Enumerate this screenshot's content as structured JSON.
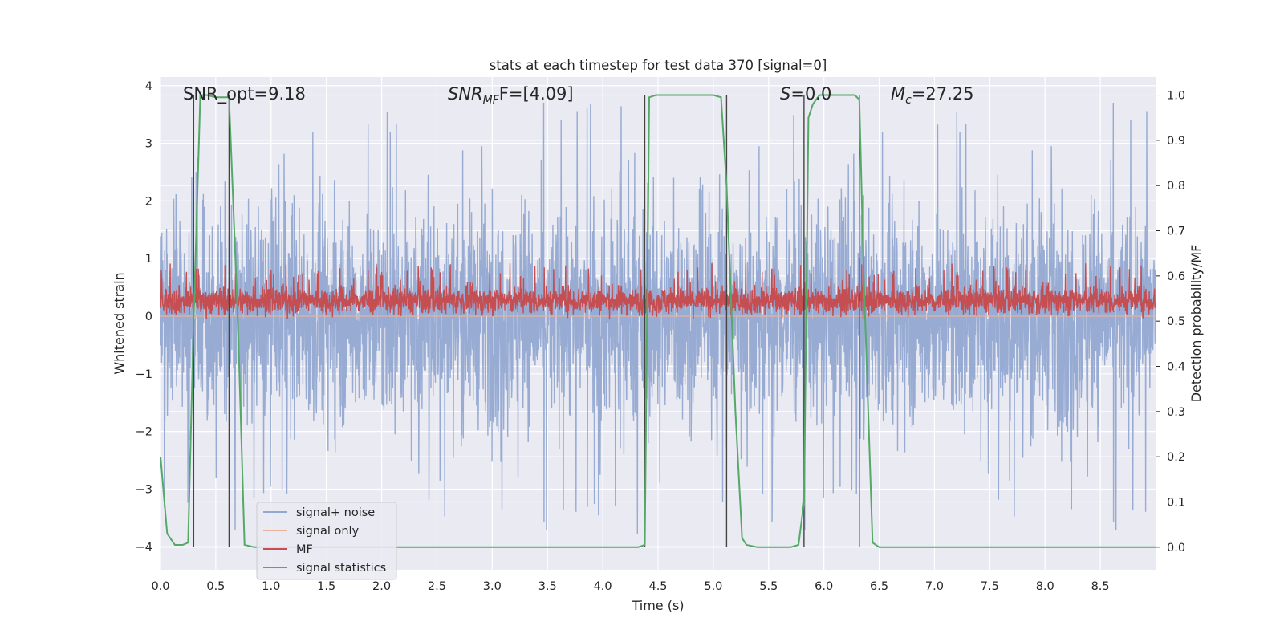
{
  "chart_data": {
    "type": "line",
    "title": "stats at each timestep for test data 370 [signal=0]",
    "xlabel": "Time (s)",
    "ylabel": "Whitened strain",
    "ylabel_right": "Detection probability/MF",
    "xlim": [
      0.0,
      9.0
    ],
    "ylim": [
      -4.4,
      4.15
    ],
    "ylim_right": [
      -0.05,
      1.04
    ],
    "x_ticks": [
      "0.0",
      "0.5",
      "1.0",
      "1.5",
      "2.0",
      "2.5",
      "3.0",
      "3.5",
      "4.0",
      "4.5",
      "5.0",
      "5.5",
      "6.0",
      "6.5",
      "7.0",
      "7.5",
      "8.0",
      "8.5"
    ],
    "y_ticks": [
      "4",
      "3",
      "2",
      "1",
      "0",
      "−1",
      "−2",
      "−3",
      "−4"
    ],
    "y_right_ticks": [
      "1.0",
      "0.9",
      "0.8",
      "0.7",
      "0.6",
      "0.5",
      "0.4",
      "0.3",
      "0.2",
      "0.1",
      "0.0"
    ],
    "annotations": {
      "snr_opt": "SNR_opt=9.18",
      "snr_mf_main": "SNR",
      "snr_mf_sub": "MF",
      "snr_mf_rest": "F=[4.09]",
      "s_main": "S",
      "s_rest": "=0.0",
      "mc_main": "M",
      "mc_sub": "c",
      "mc_rest": "=27.25"
    },
    "vertical_markers_x": [
      0.3,
      0.62,
      4.38,
      5.12,
      5.82,
      6.32
    ],
    "series": [
      {
        "name": "signal+ noise",
        "color": "#92a8d1",
        "kind": "noise",
        "envelope": [
          -4.0,
          4.0
        ],
        "typical_spread": 1.45
      },
      {
        "name": "signal only",
        "color": "#eab29a",
        "kind": "flat",
        "value": 0.0
      },
      {
        "name": "MF",
        "color": "#c44e52",
        "kind": "noise",
        "center": 0.27,
        "typical_spread": 0.22,
        "envelope": [
          -0.1,
          0.95
        ]
      },
      {
        "name": "signal statistics",
        "color": "#55a868",
        "kind": "line",
        "axis": "right",
        "x": [
          0.0,
          0.06,
          0.13,
          0.2,
          0.25,
          0.3,
          0.36,
          0.42,
          0.5,
          0.62,
          0.7,
          0.76,
          0.85,
          1.0,
          2.0,
          3.0,
          4.0,
          4.32,
          4.38,
          4.42,
          4.48,
          4.6,
          5.0,
          5.07,
          5.12,
          5.2,
          5.26,
          5.3,
          5.4,
          5.7,
          5.77,
          5.82,
          5.86,
          5.9,
          5.96,
          6.05,
          6.28,
          6.32,
          6.36,
          6.44,
          6.5,
          6.55,
          7.0,
          8.0,
          9.0
        ],
        "y": [
          0.2,
          0.03,
          0.005,
          0.005,
          0.01,
          0.5,
          1.0,
          1.0,
          0.995,
          0.995,
          0.5,
          0.005,
          0.0,
          0.0,
          0.0,
          0.0,
          0.0,
          0.0,
          0.005,
          0.995,
          1.0,
          1.0,
          1.0,
          0.995,
          0.8,
          0.3,
          0.02,
          0.005,
          0.0,
          0.0,
          0.005,
          0.1,
          0.95,
          0.98,
          1.0,
          1.0,
          1.0,
          0.99,
          0.6,
          0.01,
          0.0,
          0.0,
          0.0,
          0.0,
          0.0
        ]
      }
    ],
    "legend_location": "lower-left"
  }
}
